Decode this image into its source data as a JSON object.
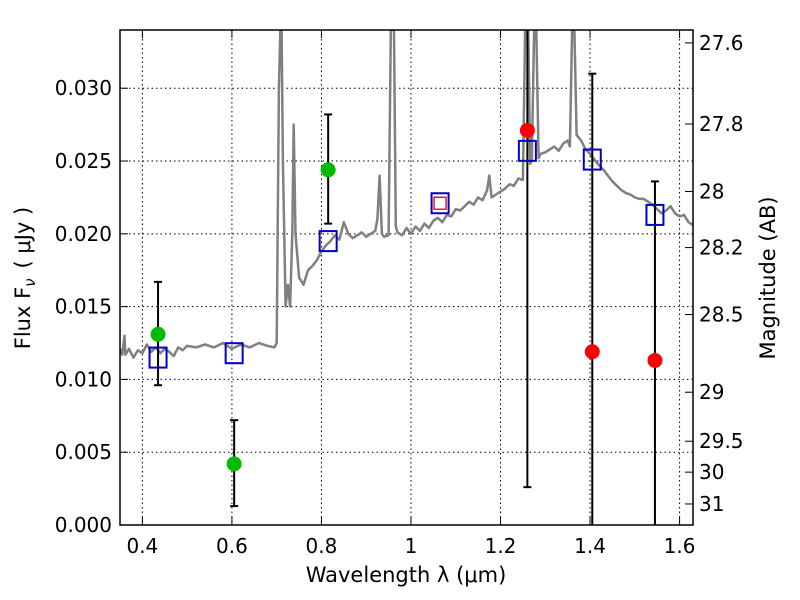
{
  "chart_data": {
    "type": "scatter",
    "xlabel": "Wavelength  λ (μm)",
    "ylabel": "Flux  F",
    "ylabel_sub": "ν",
    "ylabel_unit": "( μJy )",
    "y2label": "Magnitude (AB)",
    "xlim": [
      0.35,
      1.63
    ],
    "ylim": [
      0.0,
      0.034
    ],
    "grid": true,
    "x_ticks": [
      0.4,
      0.6,
      0.8,
      1.0,
      1.2,
      1.4,
      1.6
    ],
    "x_tick_labels": [
      "0.4",
      "0.6",
      "0.8",
      "1",
      "1.2",
      "1.4",
      "1.6"
    ],
    "y_ticks": [
      0.0,
      0.005,
      0.01,
      0.015,
      0.02,
      0.025,
      0.03
    ],
    "y_tick_labels": [
      "0.000",
      "0.005",
      "0.010",
      "0.015",
      "0.020",
      "0.025",
      "0.030"
    ],
    "mag_ticks": [
      27.6,
      27.8,
      28.0,
      28.2,
      28.5,
      29.0,
      29.5,
      30.0,
      31.0
    ],
    "mag_tick_labels": [
      "27.6",
      "27.8",
      "28",
      "28.2",
      "28.5",
      "29",
      "29.5",
      "30",
      "31"
    ],
    "colors": {
      "model": "#808080",
      "green": "#00bb00",
      "red": "#ff0000",
      "blue": "#0000cc",
      "small_square": "#dd2222",
      "errorbar": "#000000"
    },
    "model_spectrum": [
      [
        0.35,
        0.0121
      ],
      [
        0.355,
        0.0117
      ],
      [
        0.36,
        0.013
      ],
      [
        0.362,
        0.0117
      ],
      [
        0.37,
        0.0121
      ],
      [
        0.38,
        0.0115
      ],
      [
        0.39,
        0.012
      ],
      [
        0.4,
        0.0118
      ],
      [
        0.41,
        0.0124
      ],
      [
        0.42,
        0.0119
      ],
      [
        0.43,
        0.0122
      ],
      [
        0.44,
        0.0118
      ],
      [
        0.45,
        0.0121
      ],
      [
        0.46,
        0.0119
      ],
      [
        0.47,
        0.0116
      ],
      [
        0.48,
        0.0122
      ],
      [
        0.49,
        0.012
      ],
      [
        0.5,
        0.0123
      ],
      [
        0.52,
        0.0122
      ],
      [
        0.54,
        0.0124
      ],
      [
        0.56,
        0.0122
      ],
      [
        0.58,
        0.0125
      ],
      [
        0.6,
        0.0121
      ],
      [
        0.62,
        0.0124
      ],
      [
        0.64,
        0.0122
      ],
      [
        0.66,
        0.0125
      ],
      [
        0.68,
        0.0123
      ],
      [
        0.695,
        0.0122
      ],
      [
        0.7,
        0.0125
      ],
      [
        0.705,
        0.03
      ],
      [
        0.708,
        0.034
      ],
      [
        0.711,
        0.034
      ],
      [
        0.714,
        0.025
      ],
      [
        0.72,
        0.015
      ],
      [
        0.725,
        0.0165
      ],
      [
        0.73,
        0.015
      ],
      [
        0.735,
        0.02
      ],
      [
        0.738,
        0.0275
      ],
      [
        0.742,
        0.02
      ],
      [
        0.75,
        0.017
      ],
      [
        0.76,
        0.0165
      ],
      [
        0.77,
        0.0175
      ],
      [
        0.78,
        0.0178
      ],
      [
        0.79,
        0.0182
      ],
      [
        0.8,
        0.0188
      ],
      [
        0.81,
        0.0192
      ],
      [
        0.82,
        0.0195
      ],
      [
        0.83,
        0.0199
      ],
      [
        0.84,
        0.0196
      ],
      [
        0.85,
        0.0208
      ],
      [
        0.86,
        0.02
      ],
      [
        0.87,
        0.0197
      ],
      [
        0.88,
        0.0199
      ],
      [
        0.89,
        0.0201
      ],
      [
        0.9,
        0.0198
      ],
      [
        0.91,
        0.02
      ],
      [
        0.92,
        0.0202
      ],
      [
        0.925,
        0.021
      ],
      [
        0.93,
        0.024
      ],
      [
        0.935,
        0.02
      ],
      [
        0.94,
        0.0198
      ],
      [
        0.95,
        0.0199
      ],
      [
        0.955,
        0.034
      ],
      [
        0.962,
        0.034
      ],
      [
        0.966,
        0.0205
      ],
      [
        0.97,
        0.0201
      ],
      [
        0.98,
        0.0199
      ],
      [
        0.99,
        0.0204
      ],
      [
        1.0,
        0.02
      ],
      [
        1.01,
        0.0205
      ],
      [
        1.02,
        0.0202
      ],
      [
        1.03,
        0.0207
      ],
      [
        1.04,
        0.0204
      ],
      [
        1.05,
        0.0209
      ],
      [
        1.06,
        0.0211
      ],
      [
        1.07,
        0.0208
      ],
      [
        1.08,
        0.0213
      ],
      [
        1.09,
        0.0212
      ],
      [
        1.1,
        0.0217
      ],
      [
        1.11,
        0.0216
      ],
      [
        1.12,
        0.0219
      ],
      [
        1.13,
        0.0222
      ],
      [
        1.14,
        0.022
      ],
      [
        1.15,
        0.0225
      ],
      [
        1.16,
        0.0223
      ],
      [
        1.17,
        0.023
      ],
      [
        1.175,
        0.024
      ],
      [
        1.18,
        0.0225
      ],
      [
        1.19,
        0.0227
      ],
      [
        1.2,
        0.0229
      ],
      [
        1.21,
        0.0231
      ],
      [
        1.22,
        0.0234
      ],
      [
        1.23,
        0.0233
      ],
      [
        1.24,
        0.0238
      ],
      [
        1.25,
        0.0237
      ],
      [
        1.255,
        0.034
      ],
      [
        1.262,
        0.034
      ],
      [
        1.266,
        0.0248
      ],
      [
        1.27,
        0.025
      ],
      [
        1.275,
        0.034
      ],
      [
        1.28,
        0.034
      ],
      [
        1.285,
        0.0252
      ],
      [
        1.29,
        0.0255
      ],
      [
        1.3,
        0.0256
      ],
      [
        1.31,
        0.0258
      ],
      [
        1.32,
        0.026
      ],
      [
        1.33,
        0.0257
      ],
      [
        1.34,
        0.0262
      ],
      [
        1.35,
        0.0264
      ],
      [
        1.355,
        0.026
      ],
      [
        1.36,
        0.034
      ],
      [
        1.365,
        0.034
      ],
      [
        1.37,
        0.0268
      ],
      [
        1.38,
        0.0264
      ],
      [
        1.39,
        0.0258
      ],
      [
        1.4,
        0.0255
      ],
      [
        1.41,
        0.0251
      ],
      [
        1.42,
        0.0247
      ],
      [
        1.43,
        0.0244
      ],
      [
        1.44,
        0.024
      ],
      [
        1.45,
        0.0236
      ],
      [
        1.46,
        0.0233
      ],
      [
        1.47,
        0.023
      ],
      [
        1.48,
        0.0228
      ],
      [
        1.49,
        0.0227
      ],
      [
        1.5,
        0.0225
      ],
      [
        1.51,
        0.0224
      ],
      [
        1.52,
        0.0224
      ],
      [
        1.53,
        0.0222
      ],
      [
        1.54,
        0.022
      ],
      [
        1.55,
        0.0217
      ],
      [
        1.56,
        0.0214
      ],
      [
        1.57,
        0.0216
      ],
      [
        1.58,
        0.0219
      ],
      [
        1.59,
        0.0214
      ],
      [
        1.6,
        0.0212
      ],
      [
        1.61,
        0.0213
      ],
      [
        1.62,
        0.0208
      ],
      [
        1.63,
        0.0206
      ]
    ],
    "observed_green": [
      {
        "x": 0.435,
        "y": 0.0131,
        "err_low": 0.0035,
        "err_high": 0.0036
      },
      {
        "x": 0.605,
        "y": 0.0042,
        "err_low": 0.0029,
        "err_high": 0.003
      },
      {
        "x": 0.815,
        "y": 0.0244,
        "err_low": 0.0037,
        "err_high": 0.0038
      }
    ],
    "observed_red": [
      {
        "x": 1.26,
        "y": 0.0271,
        "err_low": 0.0245,
        "err_high": 0.0075
      },
      {
        "x": 1.405,
        "y": 0.0119,
        "err_low": 0.0119,
        "err_high": 0.0191
      },
      {
        "x": 1.545,
        "y": 0.0113,
        "err_low": 0.0113,
        "err_high": 0.0123
      }
    ],
    "model_bandpass_blue": [
      {
        "x": 0.435,
        "y": 0.0115
      },
      {
        "x": 0.605,
        "y": 0.0118
      },
      {
        "x": 0.815,
        "y": 0.0195
      },
      {
        "x": 1.065,
        "y": 0.0221
      },
      {
        "x": 1.26,
        "y": 0.0257
      },
      {
        "x": 1.405,
        "y": 0.0251
      },
      {
        "x": 1.545,
        "y": 0.0213
      }
    ],
    "highlight_square": {
      "x": 1.065,
      "y": 0.0221
    }
  }
}
